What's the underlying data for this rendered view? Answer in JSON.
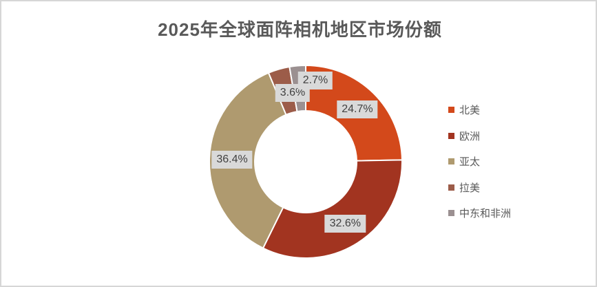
{
  "page": {
    "background": "#ffffff",
    "border_color": "#d6d6d6"
  },
  "chart_data": {
    "type": "pie",
    "subtype": "donut",
    "hole_ratio": 0.53,
    "title": "2025年全球面阵相机地区市场份额",
    "title_color": "#595959",
    "legend_position": "right",
    "direction": "clockwise",
    "start_angle_deg": 0,
    "categories": [
      "北美",
      "欧洲",
      "亚太",
      "拉美",
      "中东和非洲"
    ],
    "values": [
      24.7,
      32.6,
      36.4,
      3.6,
      2.7
    ],
    "data_labels": [
      "24.7%",
      "32.6%",
      "36.4%",
      "3.6%",
      "2.7%"
    ],
    "colors": [
      "#d3491b",
      "#a23420",
      "#af9a6f",
      "#9c5c49",
      "#9b9091"
    ],
    "slice_border_color": "#ffffff",
    "data_label_style": {
      "background": "#d9d9d9",
      "text_color": "#404040"
    },
    "legend_text_color": "#595959"
  }
}
